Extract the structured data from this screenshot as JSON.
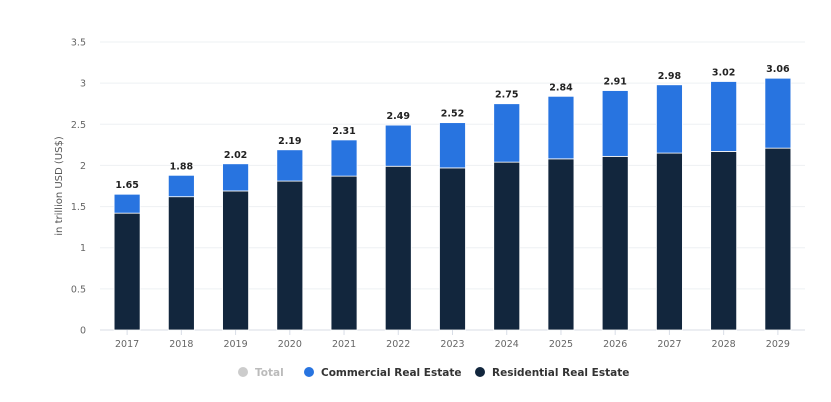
{
  "chart_data": {
    "type": "bar",
    "stacked": true,
    "ylabel": "in trillion USD (US$)",
    "ylim": [
      0,
      3.5
    ],
    "yticks": [
      "0",
      "0.5",
      "1",
      "1.5",
      "2",
      "2.5",
      "3",
      "3.5"
    ],
    "grid": true,
    "legend_position": "bottom",
    "categories": [
      "2017",
      "2018",
      "2019",
      "2020",
      "2021",
      "2022",
      "2023",
      "2024",
      "2025",
      "2026",
      "2027",
      "2028",
      "2029"
    ],
    "totals": [
      1.65,
      1.88,
      2.02,
      2.19,
      2.31,
      2.49,
      2.52,
      2.75,
      2.84,
      2.91,
      2.98,
      3.02,
      3.06
    ],
    "total_labels": [
      "1.65",
      "1.88",
      "2.02",
      "2.19",
      "2.31",
      "2.49",
      "2.52",
      "2.75",
      "2.84",
      "2.91",
      "2.98",
      "3.02",
      "3.06"
    ],
    "series": [
      {
        "name": "Residential Real Estate",
        "color": "#12263d",
        "values": [
          1.42,
          1.62,
          1.69,
          1.81,
          1.87,
          1.99,
          1.97,
          2.04,
          2.08,
          2.11,
          2.15,
          2.17,
          2.21
        ]
      },
      {
        "name": "Commercial Real Estate",
        "color": "#2874e0",
        "values": [
          0.23,
          0.26,
          0.33,
          0.38,
          0.44,
          0.5,
          0.55,
          0.71,
          0.76,
          0.8,
          0.83,
          0.85,
          0.85
        ]
      }
    ],
    "legend": [
      {
        "name": "Total",
        "color": "#cccccc",
        "hidden": true
      },
      {
        "name": "Commercial Real Estate",
        "color": "#2874e0"
      },
      {
        "name": "Residential Real Estate",
        "color": "#12263d"
      }
    ]
  }
}
